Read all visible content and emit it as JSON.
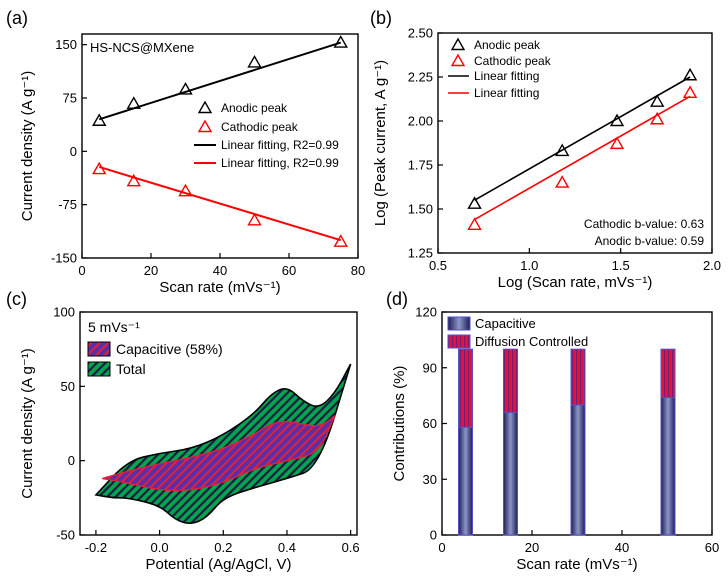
{
  "chart_data": [
    {
      "panel": "(a)",
      "type": "scatter",
      "annotation": "HS-NCS@MXene",
      "xlabel": "Scan rate (mVs⁻¹)",
      "ylabel": "Current density (A g⁻¹)",
      "xlim": [
        0,
        80
      ],
      "ylim": [
        -150,
        165
      ],
      "xticks": [
        "0",
        "20",
        "40",
        "60",
        "80"
      ],
      "yticks": [
        "-150",
        "-75",
        "0",
        "75",
        "150"
      ],
      "legend_position": "right",
      "legend": [
        "Anodic peak",
        "Cathodic peak",
        "Linear fitting, R2=0.99",
        "Linear fitting, R2=0.99"
      ],
      "series": [
        {
          "name": "Anodic peak",
          "marker": "triangle",
          "color": "#000000",
          "x": [
            5,
            15,
            30,
            50,
            75
          ],
          "y": [
            43,
            67,
            87,
            125,
            153
          ]
        },
        {
          "name": "Cathodic peak",
          "marker": "triangle",
          "color": "#ff0000",
          "x": [
            5,
            15,
            30,
            50,
            75
          ],
          "y": [
            -25,
            -42,
            -56,
            -97,
            -127
          ]
        },
        {
          "name": "Linear fitting, R2=0.99",
          "style": "line",
          "color": "#000000",
          "x": [
            5,
            75
          ],
          "y": [
            45,
            153
          ]
        },
        {
          "name": "Linear fitting, R2=0.99",
          "style": "line",
          "color": "#ff0000",
          "x": [
            5,
            75
          ],
          "y": [
            -22,
            -125
          ]
        }
      ]
    },
    {
      "panel": "(b)",
      "type": "scatter",
      "xlabel": "Log (Scan rate, mVs⁻¹)",
      "ylabel": "Log (Peak current, A g⁻¹)",
      "xlim": [
        0.5,
        2.0
      ],
      "ylim": [
        1.25,
        2.5
      ],
      "xticks": [
        "0.5",
        "1.0",
        "1.5",
        "2.0"
      ],
      "yticks": [
        "1.25",
        "1.50",
        "1.75",
        "2.00",
        "2.25",
        "2.50"
      ],
      "legend_position": "top-left",
      "legend": [
        "Anodic peak",
        "Cathodic peak",
        "Linear fitting",
        "Linear fitting"
      ],
      "annotations": [
        "Cathodic b-value: 0.63",
        "Anodic b-value: 0.59"
      ],
      "series": [
        {
          "name": "Anodic peak",
          "marker": "triangle",
          "color": "#000000",
          "x": [
            0.7,
            1.18,
            1.48,
            1.7,
            1.88
          ],
          "y": [
            1.53,
            1.83,
            2.0,
            2.11,
            2.26
          ]
        },
        {
          "name": "Cathodic peak",
          "marker": "triangle",
          "color": "#ff0000",
          "x": [
            0.7,
            1.18,
            1.48,
            1.7,
            1.88
          ],
          "y": [
            1.41,
            1.65,
            1.87,
            2.01,
            2.16
          ]
        },
        {
          "name": "Linear fitting",
          "style": "line",
          "color": "#000000",
          "x": [
            0.7,
            1.88
          ],
          "y": [
            1.55,
            2.25
          ]
        },
        {
          "name": "Linear fitting",
          "style": "line",
          "color": "#ff0000",
          "x": [
            0.7,
            1.88
          ],
          "y": [
            1.44,
            2.14
          ]
        }
      ]
    },
    {
      "panel": "(c)",
      "type": "area",
      "annotation": "5 mVs⁻¹",
      "xlabel": "Potential (Ag/AgCl, V)",
      "ylabel": "Current density (A g⁻¹)",
      "xlim": [
        -0.25,
        0.62
      ],
      "ylim": [
        -50,
        100
      ],
      "xticks": [
        "-0.2",
        "0.0",
        "0.2",
        "0.4",
        "0.6"
      ],
      "yticks": [
        "-50",
        "0",
        "50",
        "100"
      ],
      "legend_position": "top-left",
      "legend": [
        "Capacitive (58%)",
        "Total"
      ],
      "series": [
        {
          "name": "Total",
          "color": "#00a040",
          "upper": {
            "x": [
              -0.2,
              -0.1,
              0.0,
              0.1,
              0.2,
              0.3,
              0.35,
              0.4,
              0.45,
              0.5,
              0.55,
              0.6
            ],
            "y": [
              -23,
              0,
              5,
              8,
              17,
              32,
              45,
              50,
              40,
              35,
              45,
              65
            ]
          },
          "lower": {
            "x": [
              -0.2,
              -0.15,
              -0.1,
              0.0,
              0.05,
              0.1,
              0.15,
              0.2,
              0.3,
              0.4,
              0.5,
              0.6
            ],
            "y": [
              -23,
              -25,
              -25,
              -30,
              -40,
              -43,
              -38,
              -25,
              -18,
              -12,
              -5,
              65
            ]
          }
        },
        {
          "name": "Capacitive (58%)",
          "color": "#4b2fa0",
          "upper": {
            "x": [
              -0.18,
              -0.1,
              0.0,
              0.1,
              0.2,
              0.3,
              0.35,
              0.4,
              0.5,
              0.55
            ],
            "y": [
              -12,
              -7,
              -2,
              2,
              8,
              18,
              25,
              27,
              22,
              30
            ]
          },
          "lower": {
            "x": [
              -0.18,
              -0.1,
              0.0,
              0.1,
              0.2,
              0.3,
              0.4,
              0.5,
              0.55
            ],
            "y": [
              -12,
              -15,
              -20,
              -20,
              -15,
              -5,
              0,
              5,
              30
            ]
          }
        }
      ]
    },
    {
      "panel": "(d)",
      "type": "bar",
      "stacked": true,
      "xlabel": "Scan rate (mVs⁻¹)",
      "ylabel": "Contributions (%)",
      "xlim": [
        0,
        60
      ],
      "ylim": [
        0,
        120
      ],
      "xticks": [
        "0",
        "20",
        "40",
        "60"
      ],
      "yticks": [
        "0",
        "30",
        "60",
        "90",
        "120"
      ],
      "legend_position": "top-left",
      "legend": [
        "Capacitive",
        "Diffusion Controlled"
      ],
      "categories": [
        5,
        15,
        30,
        50
      ],
      "series": [
        {
          "name": "Capacitive",
          "color": "#3a3d8f",
          "values": [
            58,
            66,
            70,
            74
          ]
        },
        {
          "name": "Diffusion Controlled",
          "color": "#dc143c",
          "values": [
            42,
            34,
            30,
            26
          ]
        }
      ]
    }
  ],
  "panel_labels": [
    "(a)",
    "(b)",
    "(c)",
    "(d)"
  ]
}
